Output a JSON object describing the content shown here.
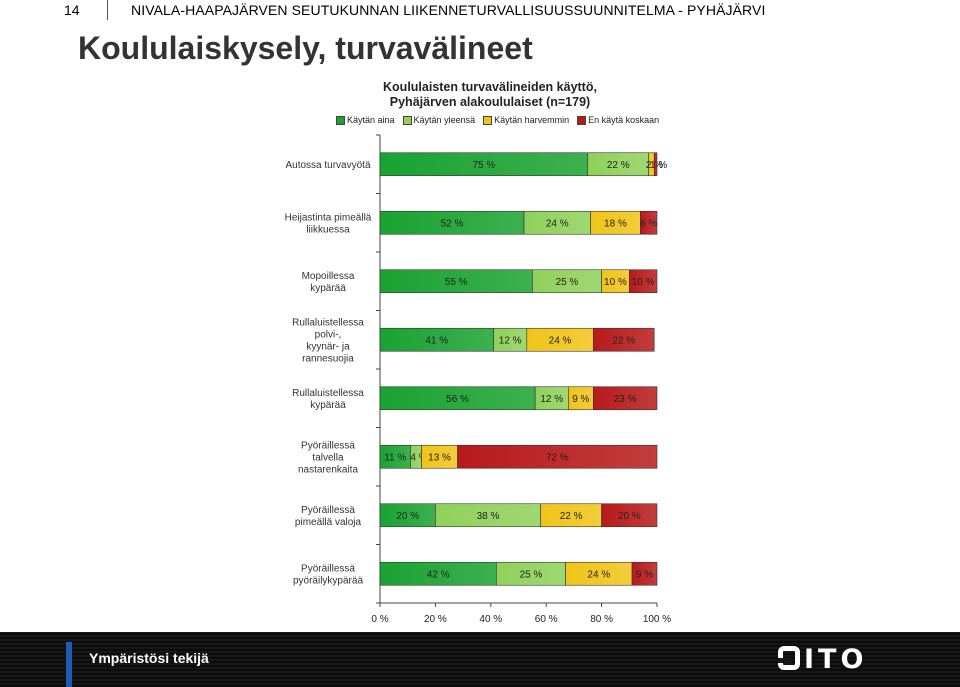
{
  "header": {
    "page_number": "14",
    "doc_title": "NIVALA-HAAPAJÄRVEN SEUTUKUNNAN LIIKENNETURVALLISUUSSUUNNITELMA - PYHÄJÄRVI"
  },
  "page_title": "Koululaiskysely, turvavälineet",
  "footer": {
    "text": "Ympäristösi tekijä",
    "logo": "SITO"
  },
  "chart_data": {
    "type": "bar",
    "orientation": "horizontal",
    "stacked": "percent",
    "title_line1": "Koululaisten turvavälineiden käyttö,",
    "title_line2": "Pyhäjärven alakoululaiset (n=179)",
    "categories": [
      "Autossa turvavyötä",
      "Heijastinta pimeällä liikkuessa",
      "Mopoillessa kypärää",
      "Rullaluistellessa polvi-, kyynär- ja rannesuojia",
      "Rullaluistellessa kypärää",
      "Pyöräillessä talvella nastarenkaita",
      "Pyöräillessä pimeällä valoja",
      "Pyöräillessä pyöräilykypärää"
    ],
    "category_lines": [
      [
        "Autossa turvavyötä"
      ],
      [
        "Heijastinta pimeällä",
        "liikkuessa"
      ],
      [
        "Mopoillessa",
        "kypärää"
      ],
      [
        "Rullaluistellessa",
        "polvi-,",
        "kyynär- ja",
        "rannesuojia"
      ],
      [
        "Rullaluistellessa",
        "kypärää"
      ],
      [
        "Pyöräillessä",
        "talvella",
        "nastarenkaita"
      ],
      [
        "Pyöräillessä",
        "pimeällä valoja"
      ],
      [
        "Pyöräillessä",
        "pyöräilykypärää"
      ]
    ],
    "series": [
      {
        "name": "Käytän aina",
        "color": "#1aa231",
        "values": [
          75,
          52,
          55,
          41,
          56,
          11,
          20,
          42
        ]
      },
      {
        "name": "Käytän yleensä",
        "color": "#8fd15a",
        "values": [
          22,
          24,
          25,
          12,
          12,
          4,
          38,
          25
        ]
      },
      {
        "name": "Käytän harvemmin",
        "color": "#f0c419",
        "values": [
          2,
          18,
          10,
          24,
          9,
          13,
          22,
          24
        ]
      },
      {
        "name": "En käytä koskaan",
        "color": "#b81a1a",
        "values": [
          1,
          6,
          10,
          22,
          23,
          72,
          20,
          9
        ]
      }
    ],
    "x_ticks": [
      "0 %",
      "20 %",
      "40 %",
      "60 %",
      "80 %",
      "100 %"
    ],
    "xlim": [
      0,
      100
    ],
    "legend_position": "top"
  }
}
